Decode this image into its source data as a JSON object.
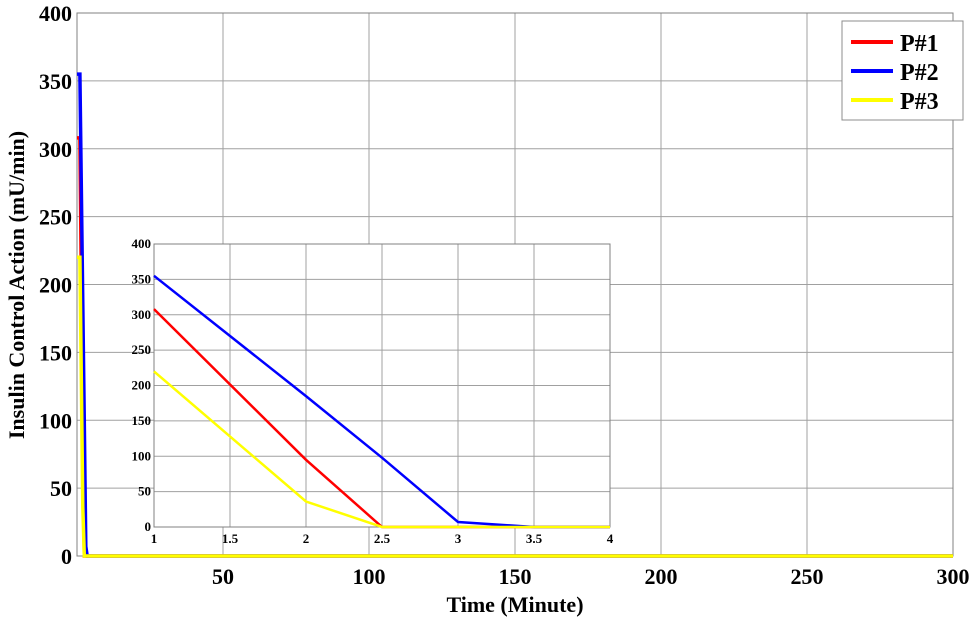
{
  "chart_data": [
    {
      "type": "line",
      "role": "main",
      "title": "",
      "xlabel": "Time (Minute)",
      "ylabel": "Insulin Control Action (mU/min)",
      "xlim": [
        0,
        300
      ],
      "ylim": [
        0,
        400
      ],
      "xticks": [
        50,
        100,
        150,
        200,
        250,
        300
      ],
      "yticks": [
        0,
        50,
        100,
        150,
        200,
        250,
        300,
        350,
        400
      ],
      "grid": true,
      "legend_position": "upper right",
      "series": [
        {
          "name": "P#1",
          "color": "#ff0000",
          "x": [
            1,
            2,
            2.5,
            300
          ],
          "y": [
            308,
            95,
            0,
            0
          ]
        },
        {
          "name": "P#2",
          "color": "#0000ff",
          "x": [
            1,
            2,
            2.5,
            3,
            3.5,
            300
          ],
          "y": [
            355,
            185,
            98,
            7,
            0,
            0
          ]
        },
        {
          "name": "P#3",
          "color": "#ffff00",
          "x": [
            1,
            2,
            2.5,
            300
          ],
          "y": [
            220,
            36,
            0,
            0
          ]
        }
      ]
    },
    {
      "type": "line",
      "role": "inset-zoom",
      "title": "",
      "xlabel": "",
      "ylabel": "",
      "xlim": [
        1,
        4
      ],
      "ylim": [
        0,
        400
      ],
      "xticks": [
        1,
        1.5,
        2,
        2.5,
        3,
        3.5,
        4
      ],
      "yticks": [
        0,
        50,
        100,
        150,
        200,
        250,
        300,
        350,
        400
      ],
      "grid": true,
      "series": [
        {
          "name": "P#1",
          "color": "#ff0000",
          "x": [
            1,
            2,
            2.5,
            3,
            3.5,
            4
          ],
          "y": [
            308,
            95,
            0,
            0,
            0,
            0
          ]
        },
        {
          "name": "P#2",
          "color": "#0000ff",
          "x": [
            1,
            2,
            2.5,
            3,
            3.5,
            4
          ],
          "y": [
            355,
            185,
            98,
            7,
            0,
            0
          ]
        },
        {
          "name": "P#3",
          "color": "#ffff00",
          "x": [
            1,
            2,
            2.5,
            3,
            3.5,
            4
          ],
          "y": [
            220,
            36,
            0,
            0,
            0,
            0
          ]
        }
      ]
    }
  ],
  "labels": {
    "xlabel": "Time (Minute)",
    "ylabel": "Insulin Control Action (mU/min)",
    "main_xticks": [
      "50",
      "100",
      "150",
      "200",
      "250",
      "300"
    ],
    "main_yticks": [
      "0",
      "50",
      "100",
      "150",
      "200",
      "250",
      "300",
      "350",
      "400"
    ],
    "inset_xticks": [
      "1",
      "1.5",
      "2",
      "2.5",
      "3",
      "3.5",
      "4"
    ],
    "inset_yticks": [
      "0",
      "50",
      "100",
      "150",
      "200",
      "250",
      "300",
      "350",
      "400"
    ]
  },
  "legend": {
    "items": [
      {
        "label": "P#1",
        "color": "#ff0000"
      },
      {
        "label": "P#2",
        "color": "#0000ff"
      },
      {
        "label": "P#3",
        "color": "#ffff00"
      }
    ]
  },
  "style": {
    "grid_color": "#a0a0a0",
    "axis_color": "#808080"
  }
}
